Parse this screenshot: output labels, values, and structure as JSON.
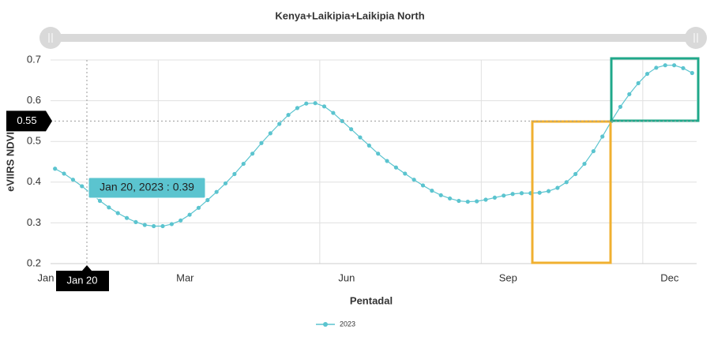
{
  "chart_data": {
    "type": "line",
    "title": "Kenya+Laikipia+Laikipia North",
    "xlabel": "Pentadal",
    "ylabel": "eVIIRS NDVI",
    "series": [
      {
        "name": "2023",
        "color": "#5bc4cf",
        "values": [
          0.433,
          0.421,
          0.406,
          0.39,
          0.372,
          0.354,
          0.338,
          0.324,
          0.312,
          0.302,
          0.295,
          0.292,
          0.292,
          0.297,
          0.306,
          0.32,
          0.337,
          0.356,
          0.376,
          0.397,
          0.42,
          0.445,
          0.47,
          0.496,
          0.52,
          0.543,
          0.565,
          0.582,
          0.593,
          0.594,
          0.586,
          0.57,
          0.55,
          0.53,
          0.51,
          0.49,
          0.47,
          0.452,
          0.436,
          0.421,
          0.406,
          0.392,
          0.379,
          0.368,
          0.36,
          0.354,
          0.352,
          0.353,
          0.357,
          0.362,
          0.367,
          0.371,
          0.373,
          0.373,
          0.374,
          0.378,
          0.386,
          0.4,
          0.42,
          0.445,
          0.476,
          0.512,
          0.55,
          0.585,
          0.616,
          0.643,
          0.666,
          0.681,
          0.687,
          0.687,
          0.68,
          0.668
        ]
      }
    ],
    "xlim": [
      -0.5,
      71.5
    ],
    "xticks": [
      {
        "value": -0.5,
        "label": "Jan"
      },
      {
        "value": 11.5,
        "label": "Mar"
      },
      {
        "value": 29.5,
        "label": "Jun"
      },
      {
        "value": 47.5,
        "label": "Sep"
      },
      {
        "value": 65.5,
        "label": "Dec"
      }
    ],
    "ylim": [
      0.2,
      0.7
    ],
    "yticks": [
      0.2,
      0.3,
      0.4,
      0.5,
      0.6,
      0.7
    ],
    "grid": true,
    "tooltip": "Jan 20, 2023 : 0.39",
    "crosshair": {
      "x_label": "Jan 20",
      "y": 0.55
    }
  }
}
